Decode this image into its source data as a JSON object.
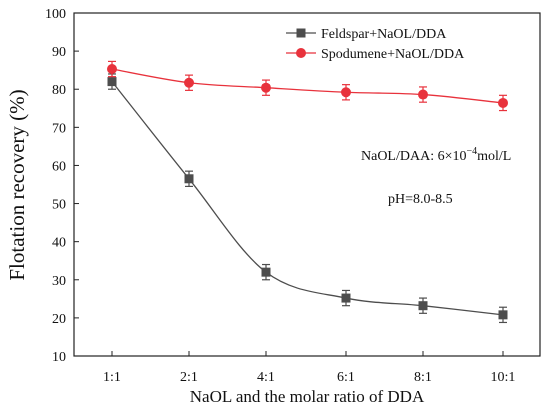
{
  "chart_data": {
    "type": "line",
    "xlabel": "NaOL and the molar ratio of DDA",
    "ylabel": "Flotation recovery (%)",
    "categories": [
      "1:1",
      "2:1",
      "4:1",
      "6:1",
      "8:1",
      "10:1"
    ],
    "ylim": [
      10,
      100
    ],
    "yticks": [
      10,
      20,
      30,
      40,
      50,
      60,
      70,
      80,
      90,
      100
    ],
    "grid": false,
    "legend_position": "top-right",
    "series": [
      {
        "name": "Feldspar+NaOL/DDA",
        "color": "#4d4d4d",
        "marker": "square",
        "values": [
          82.0,
          56.5,
          32.0,
          25.2,
          23.2,
          20.8
        ],
        "error": [
          2.0,
          2.0,
          2.0,
          2.0,
          2.0,
          2.0
        ]
      },
      {
        "name": "Spodumene+NaOL/DDA",
        "color": "#e8323c",
        "marker": "circle",
        "values": [
          85.3,
          81.7,
          80.4,
          79.2,
          78.6,
          76.4
        ],
        "error": [
          2.0,
          2.0,
          2.0,
          2.0,
          2.0,
          2.0
        ]
      }
    ],
    "annotations": {
      "concentration_label": "NaOL/DAA: 6×10",
      "concentration_exp": "−4",
      "concentration_unit": "mol/L",
      "ph": "pH=8.0-8.5"
    }
  }
}
